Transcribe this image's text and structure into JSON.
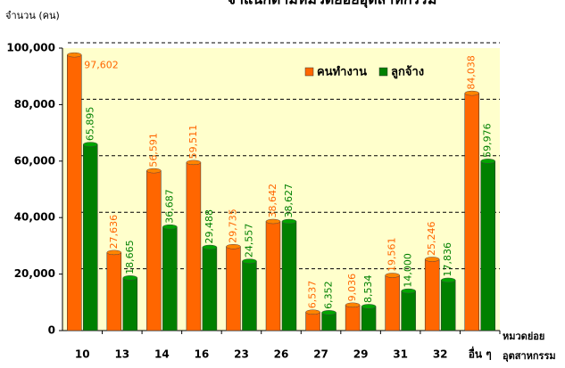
{
  "chart_data": {
    "type": "bar",
    "title": "จำแนกตามหมวดย่อยอุตสาหกรรม",
    "y_axis_label": "จำนวน (คน)",
    "x_axis_label": [
      "หมวดย่อย",
      "อุตสาหกรรม"
    ],
    "categories": [
      "10",
      "13",
      "14",
      "16",
      "23",
      "26",
      "27",
      "29",
      "31",
      "32",
      "อื่น ๆ"
    ],
    "series": [
      {
        "name": "คนทำงาน",
        "color": "#ff6600",
        "values": [
          97602,
          27636,
          56591,
          59511,
          29735,
          38642,
          6537,
          9036,
          19561,
          25246,
          84038
        ],
        "value_labels": [
          "97,602",
          "27,636",
          "56,591",
          "59,511",
          "29,735",
          "38,642",
          "6,537",
          "9,036",
          "19,561",
          "25,246",
          "84,038"
        ]
      },
      {
        "name": "ลูกจ้าง",
        "color": "#008000",
        "values": [
          65895,
          18665,
          36687,
          29488,
          24557,
          38627,
          6352,
          8534,
          14000,
          17836,
          59976
        ],
        "value_labels": [
          "65,895",
          "18,665",
          "36,687",
          "29,488",
          "24,557",
          "38,627",
          "6,352",
          "8,534",
          "14,000",
          "17,836",
          "59,976"
        ]
      }
    ],
    "ylim": [
      0,
      100000
    ],
    "yticks": [
      {
        "value": 0,
        "label": "0"
      },
      {
        "value": 20000,
        "label": "20,000"
      },
      {
        "value": 40000,
        "label": "40,000"
      },
      {
        "value": 60000,
        "label": "60,000"
      },
      {
        "value": 80000,
        "label": "80,000"
      },
      {
        "value": 100000,
        "label": "100,000"
      }
    ],
    "grid": true,
    "legend": "top-right"
  }
}
